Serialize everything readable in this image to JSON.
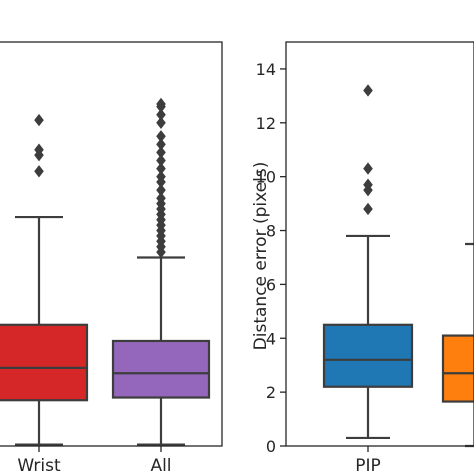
{
  "chart_data": [
    {
      "type": "box",
      "ylabel": "",
      "ylim": [
        0,
        15
      ],
      "show_yticks": false,
      "categories": [
        "Wrist",
        "All"
      ],
      "boxes": [
        {
          "category": "Wrist",
          "color": "#d62728",
          "min": 0.05,
          "q1": 1.7,
          "median": 2.9,
          "q3": 4.5,
          "max": 8.5,
          "outliers": [
            10.2,
            10.8,
            11.0,
            12.1
          ]
        },
        {
          "category": "All",
          "color": "#9467bd",
          "min": 0.05,
          "q1": 1.8,
          "median": 2.7,
          "q3": 3.9,
          "max": 7.0,
          "outliers": [
            7.2,
            7.4,
            7.6,
            7.8,
            8.0,
            8.2,
            8.4,
            8.6,
            8.8,
            9.0,
            9.2,
            9.5,
            9.8,
            10.0,
            10.3,
            10.6,
            10.9,
            11.2,
            11.5,
            12.0,
            12.3,
            12.6,
            12.7
          ]
        }
      ]
    },
    {
      "type": "box",
      "ylabel": "Distance error (pixels)",
      "ylim": [
        0,
        15
      ],
      "yticks": [
        0,
        2,
        4,
        6,
        8,
        10,
        12,
        14
      ],
      "categories": [
        "PIP",
        ""
      ],
      "boxes": [
        {
          "category": "PIP",
          "color": "#1f77b4",
          "min": 0.3,
          "q1": 2.2,
          "median": 3.2,
          "q3": 4.5,
          "max": 7.8,
          "outliers": [
            8.8,
            9.5,
            9.7,
            10.3,
            13.2
          ]
        },
        {
          "category": "",
          "color": "#ff7f0e",
          "min": 0.0,
          "q1": 1.65,
          "median": 2.7,
          "q3": 4.1,
          "max": 7.5,
          "outliers": []
        }
      ]
    }
  ]
}
